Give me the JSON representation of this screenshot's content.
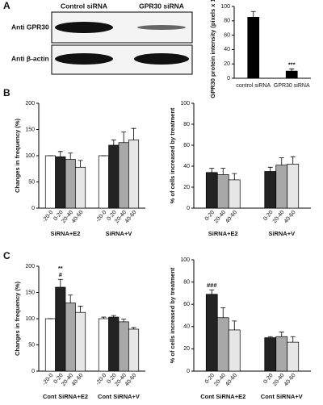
{
  "panel_labels": [
    "A",
    "B",
    "C"
  ],
  "blot": {
    "columns": [
      "Control siRNA",
      "GPR30 siRNA"
    ],
    "rows": [
      "Anti GPR30",
      "Anti β-actin"
    ]
  },
  "chart_data": [
    {
      "type": "bar",
      "ylabel": "GPR30 protein intensity (pixels x 1000)",
      "categories": [
        "control siRNA",
        "GPR30 siRNA"
      ],
      "values": [
        85,
        10
      ],
      "errors": [
        8,
        3
      ],
      "color": "#000000",
      "ylim": [
        0,
        100
      ],
      "yticks": [
        0,
        20,
        40,
        60,
        80,
        100
      ],
      "annotations": [
        {
          "text": "***",
          "category": 1
        }
      ]
    },
    {
      "type": "bar",
      "ylabel": "Changes in frequency (%)",
      "categories": [
        "SiRNA+E2",
        "SiRNA+V"
      ],
      "series": [
        {
          "name": "-20-0",
          "color": "#ffffff",
          "values": [
            100,
            100
          ],
          "errors": [
            0,
            0
          ]
        },
        {
          "name": "0-20",
          "color": "#222222",
          "values": [
            98,
            120
          ],
          "errors": [
            10,
            10
          ]
        },
        {
          "name": "20-40",
          "color": "#a8a8a8",
          "values": [
            93,
            125
          ],
          "errors": [
            12,
            20
          ]
        },
        {
          "name": "40-60",
          "color": "#e6e6e6",
          "values": [
            78,
            130
          ],
          "errors": [
            13,
            22
          ]
        }
      ],
      "ylim": [
        0,
        200
      ],
      "yticks": [
        0,
        50,
        100,
        150,
        200
      ]
    },
    {
      "type": "bar",
      "ylabel": "% of cells increased by treatment",
      "categories": [
        "SiRNA+E2",
        "SiRNA+V"
      ],
      "series": [
        {
          "name": "0-20",
          "color": "#222222",
          "values": [
            34,
            35
          ],
          "errors": [
            4,
            4
          ]
        },
        {
          "name": "20-40",
          "color": "#a8a8a8",
          "values": [
            32,
            41
          ],
          "errors": [
            6,
            7
          ]
        },
        {
          "name": "40-60",
          "color": "#e6e6e6",
          "values": [
            27,
            42
          ],
          "errors": [
            6,
            7
          ]
        }
      ],
      "ylim": [
        0,
        100
      ],
      "yticks": [
        0,
        20,
        40,
        60,
        80,
        100
      ]
    },
    {
      "type": "bar",
      "ylabel": "Changes in frequency (%)",
      "categories": [
        "Cont SiRNA+E2",
        "Cont SiRNA+V"
      ],
      "series": [
        {
          "name": "-20-0",
          "color": "#ffffff",
          "values": [
            100,
            100
          ],
          "errors": [
            0,
            3
          ]
        },
        {
          "name": "0-20",
          "color": "#222222",
          "values": [
            160,
            103
          ],
          "errors": [
            15,
            3
          ]
        },
        {
          "name": "20-40",
          "color": "#a8a8a8",
          "values": [
            130,
            94
          ],
          "errors": [
            15,
            5
          ]
        },
        {
          "name": "40-60",
          "color": "#e6e6e6",
          "values": [
            112,
            80
          ],
          "errors": [
            12,
            3
          ]
        }
      ],
      "ylim": [
        0,
        200
      ],
      "yticks": [
        0,
        50,
        100,
        150,
        200
      ],
      "annotations": [
        {
          "text": "#",
          "category": 0,
          "series": 1
        },
        {
          "text": "**",
          "category": 0,
          "series": 1
        }
      ]
    },
    {
      "type": "bar",
      "ylabel": "% of cells increased by treatment",
      "categories": [
        "Cont SiRNA+E2",
        "Cont SiRNA+V"
      ],
      "series": [
        {
          "name": "0-20",
          "color": "#222222",
          "values": [
            69,
            30
          ],
          "errors": [
            4,
            1
          ]
        },
        {
          "name": "20-40",
          "color": "#a8a8a8",
          "values": [
            48,
            31
          ],
          "errors": [
            9,
            4
          ]
        },
        {
          "name": "40-60",
          "color": "#e6e6e6",
          "values": [
            37,
            26
          ],
          "errors": [
            8,
            5
          ]
        }
      ],
      "ylim": [
        0,
        100
      ],
      "yticks": [
        0,
        20,
        40,
        60,
        80,
        100
      ],
      "annotations": [
        {
          "text": "###",
          "category": 0,
          "series": 0
        }
      ]
    }
  ]
}
